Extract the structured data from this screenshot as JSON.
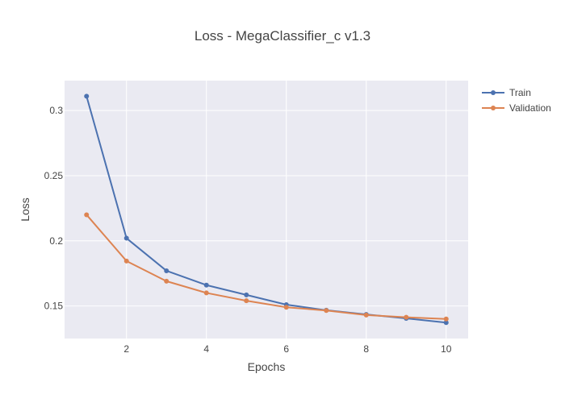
{
  "chart_data": {
    "type": "line",
    "title": "Loss - MegaClassifier_c v1.3",
    "xlabel": "Epochs",
    "ylabel": "Loss",
    "x": [
      1,
      2,
      3,
      4,
      5,
      6,
      7,
      8,
      9,
      10
    ],
    "xlim": [
      0.45,
      10.55
    ],
    "ylim": [
      0.125,
      0.323
    ],
    "xticks": [
      2,
      4,
      6,
      8,
      10
    ],
    "yticks": [
      0.15,
      0.2,
      0.25,
      0.3
    ],
    "ytick_labels": [
      "0.15",
      "0.2",
      "0.25",
      "0.3"
    ],
    "grid": true,
    "legend_position": "top-right outside",
    "series": [
      {
        "name": "Train",
        "color": "#4c72b0",
        "values": [
          0.311,
          0.202,
          0.177,
          0.166,
          0.1585,
          0.151,
          0.1467,
          0.1435,
          0.1405,
          0.1372
        ]
      },
      {
        "name": "Validation",
        "color": "#dd8452",
        "values": [
          0.22,
          0.1845,
          0.169,
          0.16,
          0.154,
          0.149,
          0.1465,
          0.143,
          0.1413,
          0.14
        ]
      }
    ]
  }
}
